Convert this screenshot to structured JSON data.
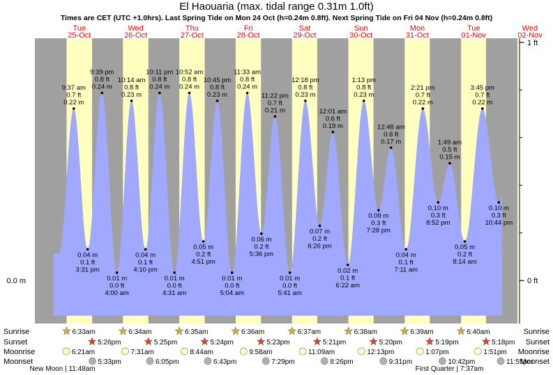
{
  "title": "El Haouaria (max. tidal range 0.31m 1.0ft)",
  "subtitle": "Times are CET (UTC +1.0hrs). Last Spring Tide on Mon 24 Oct (h=0.24m 0.8ft). Next Spring Tide on Fri 04 Nov (h=0.24m 0.8ft)",
  "colors": {
    "night": "#a0a0a0",
    "day": "#ffffc0",
    "tide": "#a0a8ff",
    "day_label": "#ff0000",
    "row_label": "#000000",
    "axis": "#000000"
  },
  "row_labels": [
    "Sunrise",
    "Sunset",
    "Moonrise",
    "Moonset"
  ],
  "moon_phases": [
    {
      "text": "New Moon | 11:48am",
      "day": 0.2
    },
    {
      "text": "First Quarter | 7:37am",
      "day": 7.07
    }
  ],
  "chart_data": {
    "type": "area",
    "x_unit": "days since Tue 25-Oct 00:00",
    "xlim": [
      -0.29,
      8.29
    ],
    "ylim_m": [
      -0.055,
      0.31
    ],
    "left_axis": {
      "label": "0.0 m",
      "value_m": 0
    },
    "right_axis": [
      {
        "label": "1 ft",
        "value_m": 0.3048
      },
      {
        "label": "0 ft",
        "value_m": 0
      }
    ],
    "days": [
      {
        "dow": "Tue",
        "date": "25-Oct",
        "sunrise": "6:33am",
        "sunset": "5:26pm",
        "moonrise": "6:21am",
        "moonset": "5:33pm"
      },
      {
        "dow": "Wed",
        "date": "26-Oct",
        "sunrise": "6:34am",
        "sunset": "5:25pm",
        "moonrise": "7:31am",
        "moonset": "6:05pm"
      },
      {
        "dow": "Thu",
        "date": "27-Oct",
        "sunrise": "6:35am",
        "sunset": "5:24pm",
        "moonrise": "8:44am",
        "moonset": "6:43pm"
      },
      {
        "dow": "Fri",
        "date": "28-Oct",
        "sunrise": "6:36am",
        "sunset": "5:23pm",
        "moonrise": "9:58am",
        "moonset": "7:29pm"
      },
      {
        "dow": "Sat",
        "date": "29-Oct",
        "sunrise": "6:37am",
        "sunset": "5:21pm",
        "moonrise": "11:09am",
        "moonset": "8:26pm"
      },
      {
        "dow": "Sun",
        "date": "30-Oct",
        "sunrise": "6:38am",
        "sunset": "5:20pm",
        "moonrise": "12:13pm",
        "moonset": "9:31pm"
      },
      {
        "dow": "Mon",
        "date": "31-Oct",
        "sunrise": "6:39am",
        "sunset": "5:19pm",
        "moonrise": "1:07pm",
        "moonset": "10:42pm"
      },
      {
        "dow": "Tue",
        "date": "01-Nov",
        "sunrise": "6:40am",
        "sunset": "5:18pm",
        "moonrise": "1:51pm",
        "moonset": "11:55pm"
      },
      {
        "dow": "Wed",
        "date": "02-Nov",
        "sunrise": "",
        "sunset": "",
        "moonrise": "",
        "moonset": ""
      }
    ],
    "tides": [
      {
        "day": 0,
        "time": "9:37 am",
        "m": 0.22,
        "ft": "0.7 ft",
        "type": "high"
      },
      {
        "day": 0,
        "time": "3:31 pm",
        "m": 0.04,
        "ft": "0.1 ft",
        "type": "low"
      },
      {
        "day": 0,
        "time": "9:39 pm",
        "m": 0.24,
        "ft": "0.8 ft",
        "type": "high"
      },
      {
        "day": 1,
        "time": "4:00 am",
        "m": 0.01,
        "ft": "0.0 ft",
        "type": "low"
      },
      {
        "day": 1,
        "time": "10:14 am",
        "m": 0.23,
        "ft": "0.8 ft",
        "type": "high"
      },
      {
        "day": 1,
        "time": "4:10 pm",
        "m": 0.04,
        "ft": "0.1 ft",
        "type": "low"
      },
      {
        "day": 1,
        "time": "10:11 pm",
        "m": 0.24,
        "ft": "0.8 ft",
        "type": "high"
      },
      {
        "day": 2,
        "time": "4:31 am",
        "m": 0.01,
        "ft": "0.0 ft",
        "type": "low"
      },
      {
        "day": 2,
        "time": "10:52 am",
        "m": 0.24,
        "ft": "0.8 ft",
        "type": "high"
      },
      {
        "day": 2,
        "time": "4:51 pm",
        "m": 0.05,
        "ft": "0.2 ft",
        "type": "low"
      },
      {
        "day": 2,
        "time": "10:45 pm",
        "m": 0.23,
        "ft": "0.8 ft",
        "type": "high"
      },
      {
        "day": 3,
        "time": "5:04 am",
        "m": 0.01,
        "ft": "0.0 ft",
        "type": "low"
      },
      {
        "day": 3,
        "time": "11:33 am",
        "m": 0.24,
        "ft": "0.8 ft",
        "type": "high"
      },
      {
        "day": 3,
        "time": "5:36 pm",
        "m": 0.06,
        "ft": "0.2 ft",
        "type": "low"
      },
      {
        "day": 3,
        "time": "11:22 pm",
        "m": 0.21,
        "ft": "0.7 ft",
        "type": "high"
      },
      {
        "day": 4,
        "time": "5:41 am",
        "m": 0.01,
        "ft": "0.0 ft",
        "type": "low"
      },
      {
        "day": 4,
        "time": "12:18 pm",
        "m": 0.23,
        "ft": "0.8 ft",
        "type": "high"
      },
      {
        "day": 4,
        "time": "6:26 pm",
        "m": 0.07,
        "ft": "0.2 ft",
        "type": "low"
      },
      {
        "day": 5,
        "time": "12:01 am",
        "m": 0.19,
        "ft": "0.6 ft",
        "type": "high"
      },
      {
        "day": 5,
        "time": "6:22 am",
        "m": 0.02,
        "ft": "0.1 ft",
        "type": "low"
      },
      {
        "day": 5,
        "time": "1:13 pm",
        "m": 0.23,
        "ft": "0.8 ft",
        "type": "high"
      },
      {
        "day": 5,
        "time": "7:28 pm",
        "m": 0.09,
        "ft": "0.3 ft",
        "type": "low"
      },
      {
        "day": 6,
        "time": "12:48 am",
        "m": 0.17,
        "ft": "0.6 ft",
        "type": "high"
      },
      {
        "day": 6,
        "time": "7:11 am",
        "m": 0.04,
        "ft": "0.1 ft",
        "type": "low"
      },
      {
        "day": 6,
        "time": "2:21 pm",
        "m": 0.22,
        "ft": "0.7 ft",
        "type": "high"
      },
      {
        "day": 6,
        "time": "8:52 pm",
        "m": 0.1,
        "ft": "0.3 ft",
        "type": "low"
      },
      {
        "day": 7,
        "time": "1:49 am",
        "m": 0.15,
        "ft": "0.5 ft",
        "type": "high"
      },
      {
        "day": 7,
        "time": "8:14 am",
        "m": 0.05,
        "ft": "0.2 ft",
        "type": "low"
      },
      {
        "day": 7,
        "time": "3:45 pm",
        "m": 0.22,
        "ft": "0.7 ft",
        "type": "high"
      },
      {
        "day": 7,
        "time": "10:44 pm",
        "m": 0.1,
        "ft": "0.3 ft",
        "type": "low"
      }
    ]
  }
}
